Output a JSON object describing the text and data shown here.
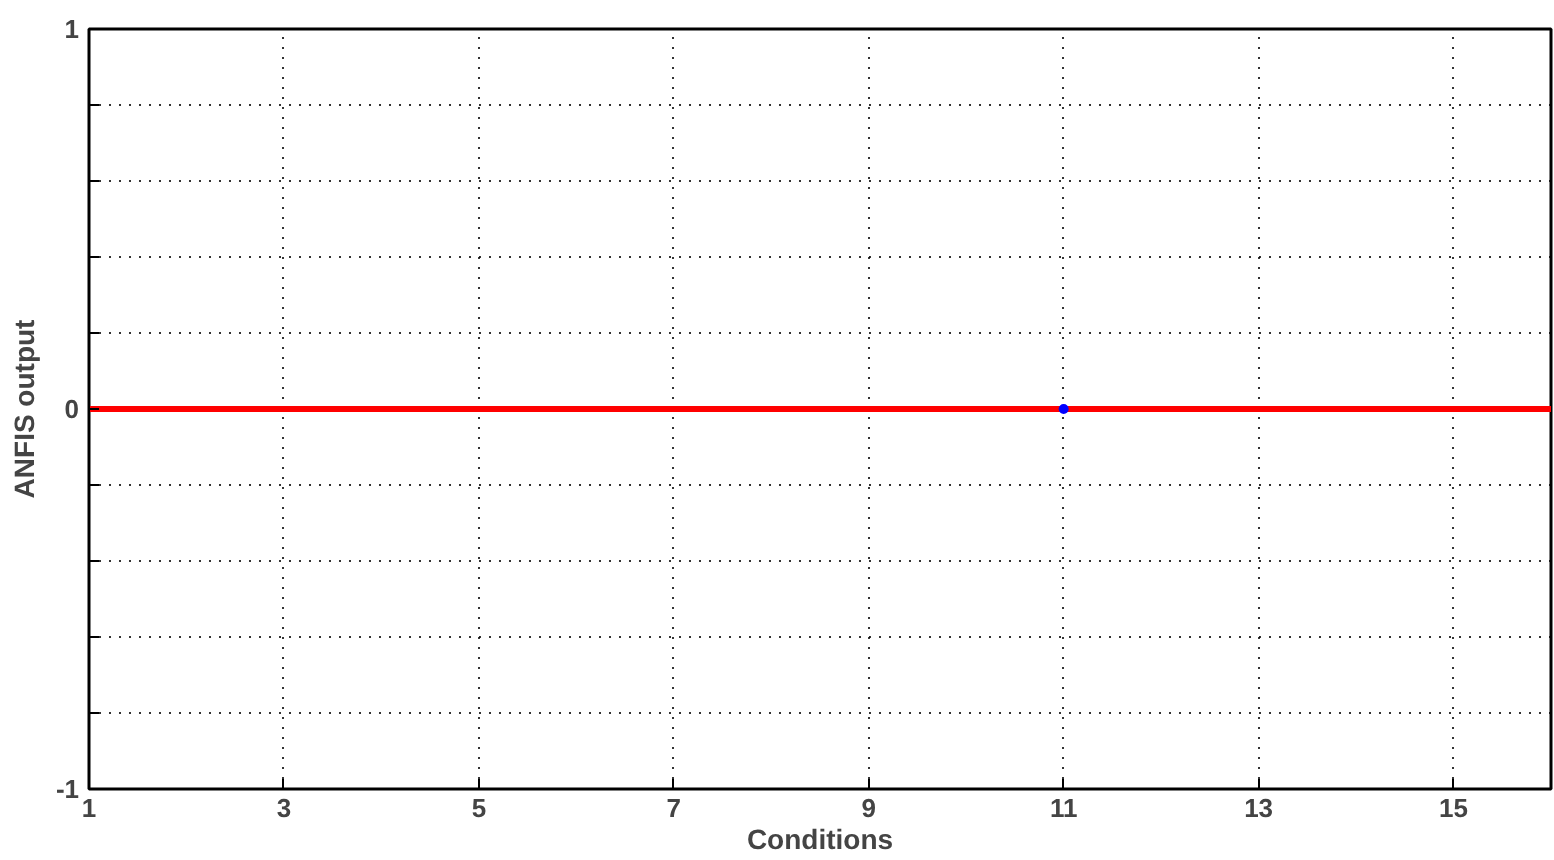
{
  "chart_data": {
    "type": "line",
    "xlabel": "Conditions",
    "ylabel": "ANFIS output",
    "x": [
      1,
      16
    ],
    "series": [
      {
        "color": "#ff0000",
        "values": [
          0,
          0
        ]
      },
      {
        "type": "scatter",
        "color": "#0000ff",
        "x": [
          11
        ],
        "values": [
          0
        ],
        "marker": "circle"
      }
    ],
    "xlim": [
      1,
      16
    ],
    "xticks": [
      1,
      3,
      5,
      7,
      9,
      11,
      13,
      15
    ],
    "ylim": [
      -1,
      1
    ],
    "yticks": [
      -1,
      {
        "value": -0.8,
        "label": null
      },
      {
        "value": -0.6,
        "label": null
      },
      {
        "value": -0.4,
        "label": null
      },
      {
        "value": -0.2,
        "label": null
      },
      0,
      {
        "value": 0.2,
        "label": null
      },
      {
        "value": 0.4,
        "label": null
      },
      {
        "value": 0.6,
        "label": null
      },
      {
        "value": 0.8,
        "label": null
      },
      1
    ],
    "grid": true
  }
}
